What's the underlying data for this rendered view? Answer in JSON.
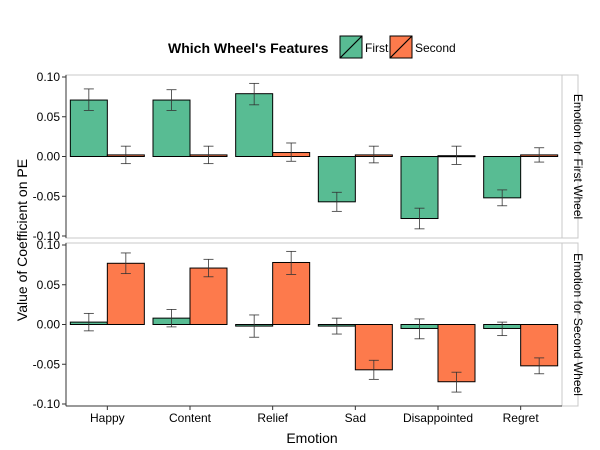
{
  "chart_data": {
    "type": "bar",
    "layout": "faceted-grouped",
    "categories": [
      "Happy",
      "Content",
      "Relief",
      "Sad",
      "Disappointed",
      "Regret"
    ],
    "xlabel": "Emotion",
    "ylabel": "Value of Coefficient on PE",
    "ylim": [
      -0.1,
      0.1
    ],
    "yticks": [
      0.1,
      0.05,
      0.0,
      -0.05,
      -0.1
    ],
    "ytick_labels": [
      "0.10",
      "0.05",
      "0.00",
      "-0.05",
      "-0.10"
    ],
    "legend": {
      "title": "Which Wheel's Features",
      "placement": "top",
      "entries": [
        {
          "label": "First",
          "color": "#58BC93"
        },
        {
          "label": "Second",
          "color": "#FD7A4C"
        }
      ]
    },
    "panels": [
      {
        "strip_label": "Emotion for First Wheel",
        "series": [
          {
            "name": "First",
            "values": [
              0.071,
              0.071,
              0.079,
              -0.057,
              -0.078,
              -0.052
            ],
            "err_low": [
              0.058,
              0.058,
              0.065,
              -0.069,
              -0.091,
              -0.062
            ],
            "err_high": [
              0.085,
              0.084,
              0.092,
              -0.045,
              -0.065,
              -0.042
            ]
          },
          {
            "name": "Second",
            "values": [
              0.002,
              0.002,
              0.005,
              0.002,
              0.001,
              0.002
            ],
            "err_low": [
              -0.009,
              -0.009,
              -0.006,
              -0.008,
              -0.01,
              -0.007
            ],
            "err_high": [
              0.013,
              0.013,
              0.017,
              0.013,
              0.013,
              0.011
            ]
          }
        ]
      },
      {
        "strip_label": "Emotion for Second Wheel",
        "series": [
          {
            "name": "First",
            "values": [
              0.003,
              0.008,
              -0.002,
              -0.002,
              -0.005,
              -0.005
            ],
            "err_low": [
              -0.008,
              -0.003,
              -0.016,
              -0.012,
              -0.018,
              -0.014
            ],
            "err_high": [
              0.014,
              0.019,
              0.012,
              0.008,
              0.007,
              0.003
            ]
          },
          {
            "name": "Second",
            "values": [
              0.077,
              0.071,
              0.078,
              -0.057,
              -0.072,
              -0.052
            ],
            "err_low": [
              0.064,
              0.06,
              0.063,
              -0.069,
              -0.085,
              -0.062
            ],
            "err_high": [
              0.09,
              0.082,
              0.092,
              -0.045,
              -0.06,
              -0.042
            ]
          }
        ]
      }
    ]
  }
}
